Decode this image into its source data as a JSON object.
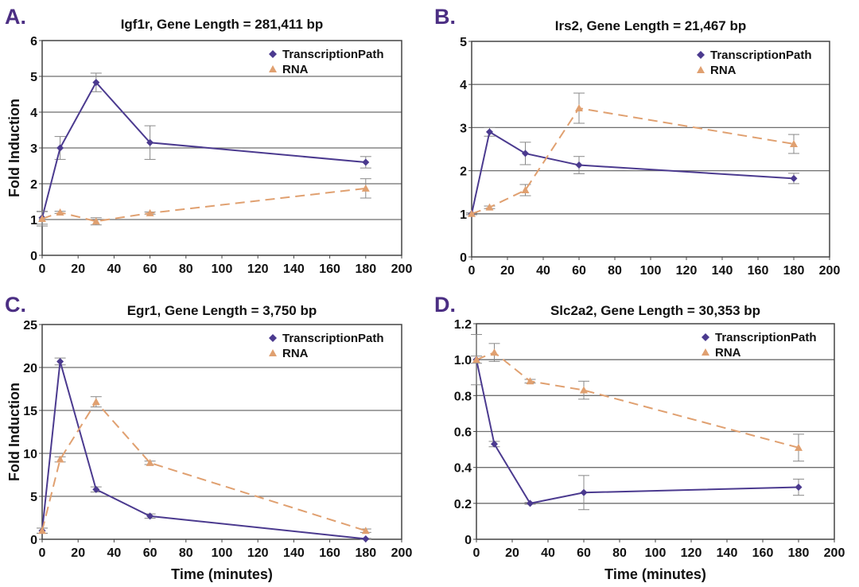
{
  "figure": {
    "colors": {
      "transcription_path": "#4b3a8f",
      "rna": "#e0a070",
      "panel_label": "#4b2e83",
      "grid": "#555555",
      "error_bar": "#888888"
    }
  },
  "chart_data": [
    {
      "type": "line",
      "panel": "A.",
      "title": "Igf1r, Gene Length = 281,411 bp",
      "xlabel": "",
      "ylabel": "Fold Induction",
      "xlim": [
        0,
        200
      ],
      "ylim": [
        0,
        6
      ],
      "xticks": [
        0,
        20,
        40,
        60,
        80,
        100,
        120,
        140,
        160,
        180,
        200
      ],
      "yticks": [
        0,
        1,
        2,
        3,
        4,
        5,
        6
      ],
      "ytick_labels": [
        "0",
        "1",
        "2",
        "3",
        "4",
        "5",
        "6"
      ],
      "grid": true,
      "legend": "top-right",
      "x": [
        0,
        10,
        30,
        60,
        180
      ],
      "series": [
        {
          "name": "TranscriptionPath",
          "marker": "diamond",
          "style": "solid",
          "values": [
            1.05,
            3.0,
            4.83,
            3.15,
            2.6
          ],
          "errors": [
            0.18,
            0.32,
            0.26,
            0.47,
            0.16
          ]
        },
        {
          "name": "RNA",
          "marker": "triangle",
          "style": "dashed",
          "values": [
            1.02,
            1.2,
            0.95,
            1.18,
            1.87
          ],
          "errors": [
            0.2,
            0.03,
            0.1,
            0.03,
            0.27
          ]
        }
      ]
    },
    {
      "type": "line",
      "panel": "B.",
      "title": "Irs2, Gene Length = 21,467 bp",
      "xlabel": "",
      "ylabel": "",
      "xlim": [
        0,
        200
      ],
      "ylim": [
        0,
        5
      ],
      "xticks": [
        0,
        20,
        40,
        60,
        80,
        100,
        120,
        140,
        160,
        180,
        200
      ],
      "yticks": [
        0,
        1,
        2,
        3,
        4,
        5
      ],
      "ytick_labels": [
        "0",
        "1",
        "2",
        "3",
        "4",
        "5"
      ],
      "grid": true,
      "legend": "top-right",
      "x": [
        0,
        10,
        30,
        60,
        180
      ],
      "series": [
        {
          "name": "TranscriptionPath",
          "marker": "diamond",
          "style": "solid",
          "values": [
            1.0,
            2.9,
            2.4,
            2.13,
            1.82
          ],
          "errors": [
            0.02,
            0.1,
            0.26,
            0.2,
            0.12
          ]
        },
        {
          "name": "RNA",
          "marker": "triangle",
          "style": "dashed",
          "values": [
            1.0,
            1.15,
            1.55,
            3.45,
            2.62
          ],
          "errors": [
            0.02,
            0.03,
            0.13,
            0.35,
            0.22
          ]
        }
      ]
    },
    {
      "type": "line",
      "panel": "C.",
      "title": "Egr1, Gene Length = 3,750 bp",
      "xlabel": "Time (minutes)",
      "ylabel": "Fold Induction",
      "xlim": [
        0,
        200
      ],
      "ylim": [
        0,
        25
      ],
      "xticks": [
        0,
        20,
        40,
        60,
        80,
        100,
        120,
        140,
        160,
        180,
        200
      ],
      "yticks": [
        0,
        5,
        10,
        15,
        20,
        25
      ],
      "ytick_labels": [
        "0",
        "5",
        "10",
        "15",
        "20",
        "25"
      ],
      "grid": true,
      "legend": "top-right",
      "x": [
        0,
        10,
        30,
        60,
        180
      ],
      "series": [
        {
          "name": "TranscriptionPath",
          "marker": "diamond",
          "style": "solid",
          "values": [
            1.0,
            20.7,
            5.8,
            2.7,
            0.05
          ],
          "errors": [
            0.3,
            0.4,
            0.3,
            0.25,
            0.05
          ]
        },
        {
          "name": "RNA",
          "marker": "triangle",
          "style": "dashed",
          "values": [
            1.0,
            9.3,
            16.0,
            8.9,
            1.0
          ],
          "errors": [
            0.3,
            0.3,
            0.6,
            0.2,
            0.2
          ]
        }
      ]
    },
    {
      "type": "line",
      "panel": "D.",
      "title": "Slc2a2, Gene Length = 30,353 bp",
      "xlabel": "Time (minutes)",
      "ylabel": "",
      "xlim": [
        0,
        200
      ],
      "ylim": [
        0,
        1.2
      ],
      "xticks": [
        0,
        20,
        40,
        60,
        80,
        100,
        120,
        140,
        160,
        180,
        200
      ],
      "yticks": [
        0,
        0.2,
        0.4,
        0.6,
        0.8,
        1.0,
        1.2
      ],
      "ytick_labels": [
        "0",
        "0.2",
        "0.4",
        "0.6",
        "0.8",
        "1.0",
        "1.2"
      ],
      "grid": true,
      "legend": "top-right",
      "x": [
        0,
        10,
        30,
        60,
        180
      ],
      "series": [
        {
          "name": "TranscriptionPath",
          "marker": "diamond",
          "style": "solid",
          "values": [
            1.0,
            0.53,
            0.2,
            0.26,
            0.29
          ],
          "errors": [
            0.14,
            0.015,
            0.005,
            0.095,
            0.045
          ]
        },
        {
          "name": "RNA",
          "marker": "triangle",
          "style": "dashed",
          "values": [
            1.0,
            1.04,
            0.88,
            0.83,
            0.51
          ],
          "errors": [
            0.02,
            0.05,
            0.01,
            0.05,
            0.075
          ]
        }
      ]
    }
  ]
}
